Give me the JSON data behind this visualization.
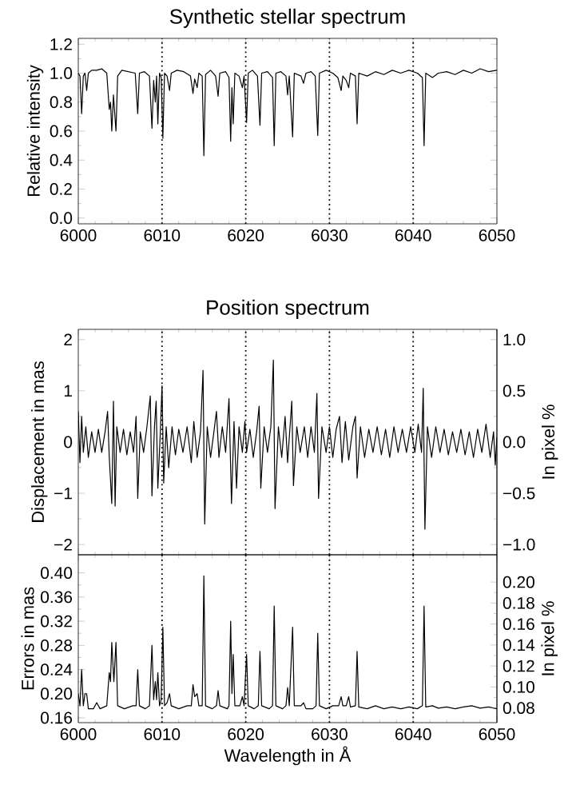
{
  "chart_data": [
    {
      "type": "line",
      "title": "Synthetic stellar spectrum",
      "ylabel": "Relative intensity",
      "xlim": [
        6000,
        6050
      ],
      "xticks": [
        6000,
        6010,
        6020,
        6030,
        6040,
        6050
      ],
      "ylim": [
        -0.04,
        1.24
      ],
      "yticks": [
        {
          "value": 0,
          "label": "0.0"
        },
        0.2,
        0.4,
        0.6,
        0.8,
        {
          "value": 1,
          "label": "1.0"
        },
        1.2
      ],
      "grid": false,
      "ref_lines": [
        {
          "axis": "x",
          "value": 6010,
          "line_style": "dotted",
          "color": "#000000"
        },
        {
          "axis": "x",
          "value": 6020,
          "line_style": "dotted",
          "color": "#000000"
        },
        {
          "axis": "x",
          "value": 6030,
          "line_style": "dotted",
          "color": "#000000"
        },
        {
          "axis": "x",
          "value": 6040,
          "line_style": "dotted",
          "color": "#000000"
        }
      ],
      "series": [
        {
          "color": "#000000",
          "x": [
            6000.0,
            6000.2,
            6000.4,
            6000.6,
            6000.8,
            6001.0,
            6001.2,
            6001.6,
            6002.2,
            6002.8,
            6003.4,
            6003.7,
            6003.85,
            6004.0,
            6004.2,
            6004.5,
            6004.7,
            6005.2,
            6006.0,
            6006.8,
            6007.1,
            6007.3,
            6007.9,
            6008.5,
            6008.8,
            6009.0,
            6009.2,
            6009.35,
            6009.5,
            6009.7,
            6009.9,
            6010.1,
            6010.3,
            6010.6,
            6010.9,
            6011.1,
            6011.8,
            6012.6,
            6013.4,
            6013.7,
            6013.9,
            6014.2,
            6014.4,
            6014.8,
            6015.0,
            6015.2,
            6015.8,
            6016.4,
            6016.7,
            6016.9,
            6017.6,
            6018.0,
            6018.2,
            6018.35,
            6018.5,
            6018.7,
            6019.2,
            6019.6,
            6019.8,
            6020.1,
            6020.3,
            6020.8,
            6021.4,
            6021.7,
            6021.9,
            6022.6,
            6023.2,
            6023.4,
            6023.6,
            6024.2,
            6024.8,
            6025.0,
            6025.2,
            6025.6,
            6025.8,
            6026.6,
            6026.9,
            6027.2,
            6027.8,
            6028.3,
            6028.6,
            6028.8,
            6029.6,
            6030.4,
            6031.0,
            6031.4,
            6031.6,
            6032.0,
            6032.3,
            6032.5,
            6033.1,
            6033.3,
            6033.5,
            6034.5,
            6035.5,
            6036.5,
            6037.5,
            6038.5,
            6039.5,
            6040.5,
            6041.1,
            6041.3,
            6041.5,
            6042.3,
            6043.0,
            6044.0,
            6045.0,
            6046.0,
            6047.0,
            6048.0,
            6049.0,
            6050.0
          ],
          "values": [
            1.0,
            0.98,
            0.72,
            0.98,
            1.0,
            0.88,
            1.0,
            1.02,
            1.02,
            1.03,
            1.0,
            0.75,
            0.8,
            0.6,
            0.85,
            0.6,
            0.98,
            1.02,
            1.01,
            1.0,
            0.72,
            1.0,
            1.01,
            0.98,
            0.62,
            0.95,
            0.8,
            0.98,
            0.65,
            1.0,
            0.97,
            0.55,
            1.0,
            0.98,
            0.88,
            1.0,
            1.02,
            1.01,
            0.98,
            0.86,
            0.96,
            0.9,
            1.0,
            0.98,
            0.43,
            0.99,
            1.02,
            0.98,
            0.84,
            1.0,
            1.01,
            0.97,
            0.53,
            0.9,
            0.65,
            1.0,
            0.98,
            0.9,
            0.98,
            0.66,
            1.0,
            1.02,
            0.98,
            0.64,
            1.0,
            1.01,
            0.97,
            0.5,
            1.0,
            1.01,
            0.98,
            0.85,
            0.98,
            0.56,
            1.0,
            0.98,
            0.93,
            1.0,
            1.01,
            0.98,
            0.57,
            1.0,
            1.02,
            1.0,
            0.97,
            0.88,
            0.98,
            0.95,
            0.9,
            1.0,
            0.98,
            0.65,
            1.0,
            0.98,
            1.01,
            0.99,
            1.02,
            1.0,
            1.02,
            1.0,
            0.97,
            0.5,
            1.0,
            0.97,
            1.0,
            1.01,
            0.99,
            1.02,
            1.0,
            1.03,
            1.01,
            1.02
          ]
        }
      ]
    },
    {
      "type": "line",
      "title": "Position spectrum",
      "ylabel": "Displacement in mas",
      "y2label": "In pixel %",
      "xlim": [
        6000,
        6050
      ],
      "xticks": [
        6000,
        6010,
        6020,
        6030,
        6040,
        6050
      ],
      "ylim": [
        -2.2,
        2.2
      ],
      "yticks": [
        {
          "value": -2,
          "label": "−2"
        },
        {
          "value": -1,
          "label": "−1"
        },
        0,
        1,
        2
      ],
      "y2lim": [
        -1.1,
        1.1
      ],
      "y2ticks": [
        {
          "value": -1,
          "label": "−1.0"
        },
        {
          "value": -0.5,
          "label": "−0.5"
        },
        {
          "value": 0,
          "label": "0.0"
        },
        0.5,
        {
          "value": 1,
          "label": "1.0"
        }
      ],
      "tick_labels": "y",
      "grid": false,
      "ref_lines": [
        {
          "axis": "x",
          "value": 6010,
          "line_style": "dotted",
          "color": "#000000"
        },
        {
          "axis": "x",
          "value": 6020,
          "line_style": "dotted",
          "color": "#000000"
        },
        {
          "axis": "x",
          "value": 6030,
          "line_style": "dotted",
          "color": "#000000"
        },
        {
          "axis": "x",
          "value": 6040,
          "line_style": "dotted",
          "color": "#000000"
        }
      ],
      "series": [
        {
          "color": "#000000",
          "x": [
            6000.0,
            6000.2,
            6000.4,
            6000.6,
            6000.9,
            6001.2,
            6001.6,
            6002.0,
            6002.4,
            6002.8,
            6003.2,
            6003.5,
            6003.7,
            6004.0,
            6004.2,
            6004.4,
            6004.6,
            6005.0,
            6005.4,
            6005.8,
            6006.2,
            6006.6,
            6006.9,
            6007.1,
            6007.4,
            6007.8,
            6008.2,
            6008.6,
            6008.8,
            6009.1,
            6009.3,
            6009.5,
            6009.8,
            6010.0,
            6010.2,
            6010.5,
            6010.8,
            6011.2,
            6011.6,
            6012.0,
            6012.5,
            6013.0,
            6013.5,
            6013.8,
            6014.2,
            6014.6,
            6014.9,
            6015.1,
            6015.4,
            6015.8,
            6016.2,
            6016.5,
            6016.8,
            6017.2,
            6017.6,
            6018.0,
            6018.3,
            6018.6,
            6018.9,
            6019.2,
            6019.6,
            6019.9,
            6020.1,
            6020.5,
            6020.9,
            6021.3,
            6021.6,
            6021.8,
            6022.2,
            6022.6,
            6023.0,
            6023.3,
            6023.5,
            6023.9,
            6024.3,
            6024.7,
            6025.0,
            6025.5,
            6025.7,
            6026.1,
            6026.5,
            6027.0,
            6027.4,
            6027.8,
            6028.2,
            6028.5,
            6028.7,
            6029.1,
            6029.6,
            6030.0,
            6030.4,
            6030.8,
            6031.2,
            6031.5,
            6031.9,
            6032.3,
            6032.8,
            6033.1,
            6033.3,
            6033.7,
            6034.2,
            6034.7,
            6035.2,
            6035.7,
            6036.2,
            6036.7,
            6037.2,
            6037.7,
            6038.2,
            6038.7,
            6039.2,
            6039.7,
            6040.2,
            6040.6,
            6041.0,
            6041.2,
            6041.4,
            6041.7,
            6042.2,
            6042.7,
            6043.2,
            6043.7,
            6044.2,
            6044.7,
            6045.2,
            6045.7,
            6046.2,
            6046.7,
            6047.2,
            6047.7,
            6048.2,
            6048.7,
            6049.2,
            6049.6,
            6049.8,
            6050.0
          ],
          "values": [
            0.6,
            -0.4,
            0.5,
            -0.2,
            0.3,
            -0.3,
            0.2,
            -0.2,
            0.25,
            -0.2,
            0.2,
            0.6,
            -0.3,
            -1.2,
            0.8,
            -1.25,
            0.3,
            -0.2,
            0.25,
            -0.25,
            0.2,
            -0.2,
            0.5,
            -1.1,
            0.2,
            -0.2,
            0.3,
            0.9,
            -1.05,
            0.3,
            0.8,
            -0.9,
            0.2,
            1.1,
            -0.8,
            0.3,
            -0.5,
            0.3,
            -0.25,
            0.25,
            -0.2,
            0.3,
            -0.4,
            0.4,
            -0.3,
            0.2,
            1.4,
            -1.6,
            0.3,
            -0.3,
            0.2,
            0.6,
            -0.3,
            0.3,
            -0.2,
            0.85,
            -1.2,
            0.4,
            -0.9,
            0.3,
            -0.2,
            0.4,
            -0.2,
            0.25,
            -0.3,
            0.2,
            0.7,
            -0.9,
            0.3,
            -0.2,
            0.3,
            1.6,
            -1.3,
            0.3,
            -0.3,
            0.5,
            -0.4,
            0.8,
            -0.85,
            0.3,
            -0.2,
            0.3,
            -0.3,
            0.3,
            -0.2,
            0.95,
            -1.1,
            0.3,
            -0.2,
            0.3,
            -0.3,
            0.25,
            0.5,
            -0.4,
            0.4,
            -0.35,
            0.3,
            0.5,
            -0.7,
            0.3,
            -0.3,
            0.25,
            -0.2,
            0.3,
            -0.25,
            0.25,
            -0.3,
            0.3,
            -0.2,
            0.25,
            -0.2,
            0.3,
            -0.2,
            0.35,
            -0.2,
            1.05,
            -1.7,
            0.3,
            -0.3,
            0.3,
            -0.2,
            0.25,
            -0.25,
            0.2,
            -0.2,
            0.25,
            -0.25,
            0.2,
            -0.3,
            0.25,
            -0.2,
            0.35,
            -0.3,
            0.2,
            -0.45,
            0.1
          ]
        }
      ]
    },
    {
      "type": "line",
      "xlabel": "Wavelength in Å",
      "ylabel": "Errors in mas",
      "y2label": "In pixel %",
      "xlim": [
        6000,
        6050
      ],
      "xticks": [
        6000,
        6010,
        6020,
        6030,
        6040,
        6050
      ],
      "ylim": [
        0.152,
        0.43
      ],
      "yticks": [
        0.16,
        {
          "value": 0.2,
          "label": "0.20"
        },
        0.24,
        0.28,
        0.32,
        0.36,
        {
          "value": 0.4,
          "label": "0.40"
        }
      ],
      "y2lim": [
        0.066,
        0.226
      ],
      "y2ticks": [
        0.08,
        {
          "value": 0.1,
          "label": "0.10"
        },
        0.12,
        0.14,
        0.16,
        0.18,
        {
          "value": 0.2,
          "label": "0.20"
        }
      ],
      "grid": false,
      "ref_lines": [
        {
          "axis": "x",
          "value": 6010,
          "line_style": "dotted",
          "color": "#000000"
        },
        {
          "axis": "x",
          "value": 6020,
          "line_style": "dotted",
          "color": "#000000"
        },
        {
          "axis": "x",
          "value": 6030,
          "line_style": "dotted",
          "color": "#000000"
        },
        {
          "axis": "x",
          "value": 6040,
          "line_style": "dotted",
          "color": "#000000"
        }
      ],
      "series": [
        {
          "color": "#000000",
          "x": [
            6000.0,
            6000.2,
            6000.4,
            6000.6,
            6000.8,
            6001.0,
            6001.2,
            6001.8,
            6002.2,
            6002.6,
            6003.4,
            6003.7,
            6003.85,
            6004.0,
            6004.25,
            6004.5,
            6004.7,
            6005.5,
            6006.5,
            6006.9,
            6007.1,
            6007.3,
            6008.0,
            6008.5,
            6008.8,
            6009.0,
            6009.2,
            6009.35,
            6009.5,
            6009.7,
            6009.9,
            6010.1,
            6010.3,
            6010.6,
            6010.9,
            6011.1,
            6012.0,
            6013.0,
            6013.5,
            6013.7,
            6013.9,
            6014.2,
            6014.4,
            6014.8,
            6015.0,
            6015.2,
            6016.0,
            6016.5,
            6016.7,
            6016.9,
            6017.8,
            6018.0,
            6018.2,
            6018.35,
            6018.5,
            6018.7,
            6019.3,
            6019.6,
            6019.8,
            6020.1,
            6020.3,
            6021.0,
            6021.5,
            6021.7,
            6021.9,
            6022.8,
            6023.2,
            6023.4,
            6023.6,
            6024.4,
            6024.8,
            6025.0,
            6025.2,
            6025.6,
            6025.8,
            6026.6,
            6026.9,
            6027.2,
            6028.0,
            6028.4,
            6028.6,
            6028.8,
            6029.6,
            6030.4,
            6031.1,
            6031.4,
            6031.6,
            6032.0,
            6032.3,
            6032.5,
            6033.1,
            6033.3,
            6033.5,
            6034.5,
            6035.5,
            6036.5,
            6037.5,
            6038.5,
            6039.5,
            6040.5,
            6041.1,
            6041.3,
            6041.5,
            6042.3,
            6043.0,
            6044.0,
            6045.0,
            6046.0,
            6047.0,
            6048.0,
            6049.0,
            6050.0
          ],
          "values": [
            0.2,
            0.18,
            0.24,
            0.18,
            0.2,
            0.2,
            0.175,
            0.175,
            0.185,
            0.175,
            0.18,
            0.235,
            0.22,
            0.285,
            0.22,
            0.285,
            0.18,
            0.175,
            0.18,
            0.18,
            0.24,
            0.18,
            0.175,
            0.18,
            0.28,
            0.19,
            0.22,
            0.19,
            0.235,
            0.18,
            0.19,
            0.31,
            0.18,
            0.185,
            0.2,
            0.18,
            0.175,
            0.18,
            0.18,
            0.215,
            0.195,
            0.2,
            0.18,
            0.18,
            0.395,
            0.18,
            0.175,
            0.18,
            0.205,
            0.18,
            0.175,
            0.18,
            0.32,
            0.2,
            0.265,
            0.18,
            0.18,
            0.195,
            0.18,
            0.265,
            0.18,
            0.175,
            0.18,
            0.27,
            0.18,
            0.175,
            0.18,
            0.345,
            0.18,
            0.175,
            0.18,
            0.21,
            0.18,
            0.31,
            0.18,
            0.18,
            0.185,
            0.175,
            0.175,
            0.18,
            0.3,
            0.18,
            0.175,
            0.18,
            0.18,
            0.195,
            0.18,
            0.18,
            0.195,
            0.178,
            0.18,
            0.27,
            0.178,
            0.175,
            0.18,
            0.175,
            0.178,
            0.175,
            0.178,
            0.175,
            0.18,
            0.345,
            0.178,
            0.18,
            0.176,
            0.178,
            0.175,
            0.178,
            0.18,
            0.176,
            0.178,
            0.175
          ]
        }
      ]
    }
  ]
}
